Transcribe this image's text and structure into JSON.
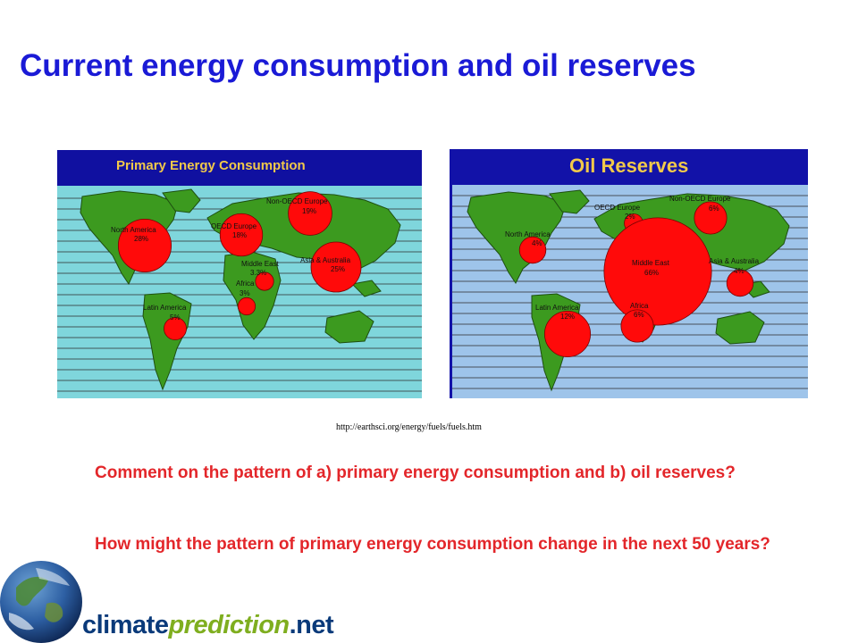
{
  "slide": {
    "title": "Current energy consumption and oil reserves",
    "source_url": "http://earthsci.org/energy/fuels/fuels.htm",
    "questions": [
      "Comment on the pattern of a) primary energy consumption and b) oil reserves?",
      "How might the pattern of primary energy consumption change in the next 50 years?"
    ]
  },
  "maps": {
    "consumption": {
      "title": "Primary Energy Consumption",
      "regions": [
        {
          "name": "North America",
          "value": "28%",
          "share": 28
        },
        {
          "name": "OECD Europe",
          "value": "18%",
          "share": 18
        },
        {
          "name": "Non-OECD Europe",
          "value": "19%",
          "share": 19
        },
        {
          "name": "Middle East",
          "value": "3.3%",
          "share": 3.3
        },
        {
          "name": "Asia & Australia",
          "value": "25%",
          "share": 25
        },
        {
          "name": "Africa",
          "value": "3%",
          "share": 3
        },
        {
          "name": "Latin America",
          "value": "5%",
          "share": 5
        }
      ]
    },
    "reserves": {
      "title": "Oil Reserves",
      "regions": [
        {
          "name": "Non-OECD Europe",
          "value": "6%",
          "share": 6
        },
        {
          "name": "OECD Europe",
          "value": "2%",
          "share": 2
        },
        {
          "name": "North America",
          "value": "4%",
          "share": 4
        },
        {
          "name": "Middle East",
          "value": "66%",
          "share": 66
        },
        {
          "name": "Asia & Australia",
          "value": "4%",
          "share": 4
        },
        {
          "name": "Africa",
          "value": "6%",
          "share": 6
        },
        {
          "name": "Latin America",
          "value": "12%",
          "share": 12
        }
      ]
    }
  },
  "logo": {
    "part1": "climate",
    "part2": "prediction",
    "part3": ".net"
  },
  "colors": {
    "title": "#1a1ad6",
    "question": "#e3262a",
    "map_header": "#1010a0",
    "land": "#3c9a1f",
    "sea_left": "#7fd6dc",
    "sea_right": "#9ec4ea",
    "bubble": "#ff0a0a"
  }
}
